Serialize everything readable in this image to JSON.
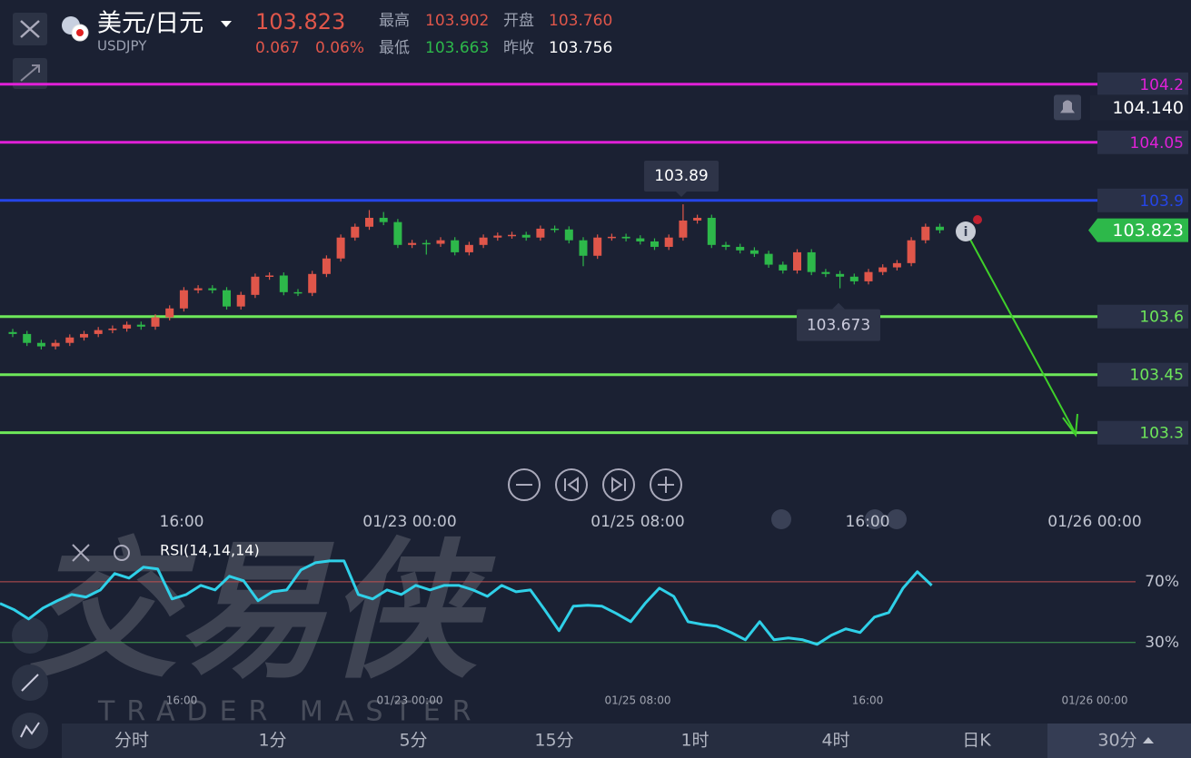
{
  "header": {
    "title": "美元/日元",
    "symbol": "USDJPY",
    "price": "103.823",
    "change": "0.067",
    "change_pct": "0.06%",
    "stats": [
      {
        "label": "最高",
        "value": "103.902"
      },
      {
        "label": "开盘",
        "value": "103.760"
      },
      {
        "label": "最低",
        "value": "103.663"
      },
      {
        "label": "昨收",
        "value": "103.756"
      }
    ]
  },
  "chart_data": [
    {
      "type": "candlestick",
      "up_color": "#e0564a",
      "down_color": "#2db84a",
      "ylim": [
        103.25,
        104.23
      ],
      "open": [
        103.56,
        103.555,
        103.532,
        103.523,
        103.532,
        103.546,
        103.555,
        103.565,
        103.569,
        103.579,
        103.574,
        103.598,
        103.621,
        103.668,
        103.673,
        103.668,
        103.626,
        103.656,
        103.703,
        103.706,
        103.663,
        103.661,
        103.71,
        103.75,
        103.804,
        103.832,
        103.855,
        103.844,
        103.785,
        103.79,
        103.788,
        103.797,
        103.766,
        103.785,
        103.804,
        103.809,
        103.811,
        103.804,
        103.827,
        103.825,
        103.797,
        103.757,
        103.804,
        103.806,
        103.802,
        103.794,
        103.78,
        103.804,
        103.848,
        103.855,
        103.785,
        103.78,
        103.771,
        103.762,
        103.734,
        103.719,
        103.766,
        103.715,
        103.71,
        103.703,
        103.691,
        103.715,
        103.727,
        103.738,
        103.797,
        103.832
      ],
      "high": [
        103.568,
        103.563,
        103.54,
        103.54,
        103.554,
        103.563,
        103.573,
        103.577,
        103.587,
        103.587,
        103.606,
        103.629,
        103.676,
        103.681,
        103.681,
        103.676,
        103.664,
        103.711,
        103.714,
        103.714,
        103.671,
        103.718,
        103.758,
        103.812,
        103.84,
        103.875,
        103.87,
        103.852,
        103.798,
        103.798,
        103.805,
        103.805,
        103.793,
        103.812,
        103.817,
        103.819,
        103.819,
        103.835,
        103.835,
        103.833,
        103.805,
        103.812,
        103.814,
        103.814,
        103.81,
        103.802,
        103.812,
        103.89,
        103.863,
        103.863,
        103.793,
        103.788,
        103.779,
        103.77,
        103.742,
        103.774,
        103.774,
        103.723,
        103.718,
        103.711,
        103.723,
        103.735,
        103.746,
        103.805,
        103.84,
        103.84
      ],
      "low": [
        103.547,
        103.524,
        103.515,
        103.515,
        103.524,
        103.538,
        103.547,
        103.557,
        103.561,
        103.566,
        103.566,
        103.59,
        103.613,
        103.66,
        103.66,
        103.618,
        103.618,
        103.648,
        103.695,
        103.655,
        103.653,
        103.653,
        103.702,
        103.742,
        103.796,
        103.824,
        103.836,
        103.777,
        103.777,
        103.76,
        103.78,
        103.758,
        103.758,
        103.777,
        103.796,
        103.801,
        103.796,
        103.796,
        103.817,
        103.789,
        103.73,
        103.749,
        103.796,
        103.794,
        103.786,
        103.772,
        103.772,
        103.796,
        103.84,
        103.777,
        103.772,
        103.763,
        103.754,
        103.726,
        103.711,
        103.711,
        103.707,
        103.702,
        103.673,
        103.683,
        103.683,
        103.707,
        103.719,
        103.73,
        103.789,
        103.815
      ],
      "close": [
        103.555,
        103.532,
        103.523,
        103.532,
        103.546,
        103.555,
        103.565,
        103.569,
        103.579,
        103.574,
        103.598,
        103.621,
        103.668,
        103.673,
        103.668,
        103.626,
        103.656,
        103.703,
        103.706,
        103.663,
        103.661,
        103.71,
        103.75,
        103.804,
        103.832,
        103.855,
        103.844,
        103.785,
        103.79,
        103.788,
        103.797,
        103.766,
        103.785,
        103.804,
        103.809,
        103.811,
        103.804,
        103.827,
        103.825,
        103.797,
        103.757,
        103.804,
        103.806,
        103.802,
        103.794,
        103.78,
        103.804,
        103.848,
        103.855,
        103.785,
        103.78,
        103.771,
        103.762,
        103.734,
        103.719,
        103.766,
        103.715,
        103.71,
        103.703,
        103.691,
        103.715,
        103.727,
        103.738,
        103.797,
        103.832,
        103.823
      ],
      "hlines": [
        {
          "value": 104.2,
          "color": "#e020d8"
        },
        {
          "value": 104.05,
          "color": "#e020d8"
        },
        {
          "value": 103.9,
          "color": "#2545e8"
        },
        {
          "value": 103.6,
          "color": "#6ee85a"
        },
        {
          "value": 103.45,
          "color": "#6ee85a"
        },
        {
          "value": 103.3,
          "color": "#6ee85a"
        }
      ],
      "current_price": 103.823,
      "alert_price": {
        "value": 104.14,
        "label": "104.140"
      },
      "high_marker": 103.89,
      "low_marker": 103.673,
      "x_labels": [
        "16:00",
        "01/23 00:00",
        "01/25 08:00",
        "16:00",
        "01/26 00:00"
      ]
    },
    {
      "type": "line",
      "title": "RSI(14,14,14)",
      "color": "#2fd0e8",
      "ylim": [
        0,
        95
      ],
      "yticks": [
        {
          "value": 70,
          "label": "70%"
        },
        {
          "value": 30,
          "label": "30%"
        }
      ],
      "values": [
        55.7,
        51.5,
        45.5,
        52.7,
        57.5,
        61.6,
        59.9,
        64.6,
        75.4,
        72.4,
        79.6,
        78.4,
        58.7,
        61.6,
        67.6,
        64.6,
        73.6,
        70.6,
        57.5,
        63.4,
        64.6,
        77.8,
        82.5,
        83.7,
        83.7,
        61.6,
        58.7,
        64.6,
        61.6,
        67.6,
        64.6,
        67.6,
        67.6,
        64.6,
        60.4,
        67.6,
        63.4,
        64.6,
        51.5,
        37.8,
        53.9,
        54.5,
        53.9,
        49.1,
        43.7,
        55.7,
        65.8,
        60.4,
        43.7,
        41.9,
        40.7,
        36.6,
        31.8,
        43.7,
        31.8,
        33.0,
        31.8,
        28.8,
        34.8,
        39.0,
        36.6,
        46.7,
        49.7,
        65.8,
        76.6,
        67.6
      ],
      "x_labels": [
        "16:00",
        "01/23 00:00",
        "01/25 08:00",
        "16:00",
        "01/26 00:00"
      ]
    }
  ],
  "watermark": {
    "title": "交易侠",
    "subtitle": "TRADER MASTER"
  },
  "tabs": [
    "分时",
    "1分",
    "5分",
    "15分",
    "1时",
    "4时",
    "日K",
    "30分"
  ]
}
